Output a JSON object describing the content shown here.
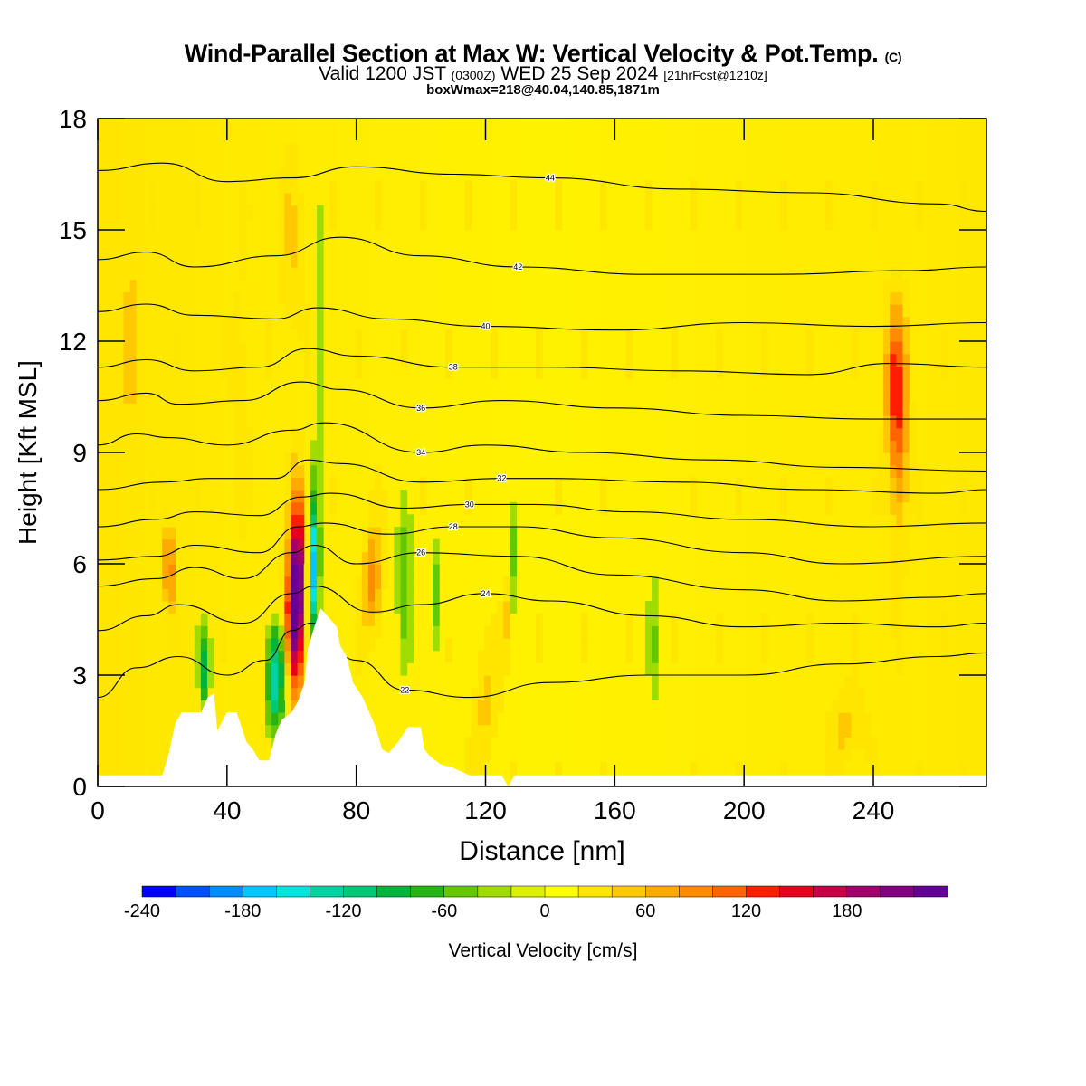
{
  "title": {
    "main": "Wind-Parallel Section at Max W: Vertical Velocity & Pot.Temp.",
    "copyright": "(C)",
    "valid_prefix": "Valid 1200 JST",
    "utc": "(0300Z)",
    "date": "WED 25 Sep 2024",
    "forecast": "[21hrFcst@1210z]",
    "box": "boxWmax=218@40.04,140.85,1871m"
  },
  "chart_data": {
    "type": "heatmap",
    "xlabel": "Distance [nm]",
    "ylabel": "Height [Kft MSL]",
    "xlim": [
      0,
      275
    ],
    "ylim": [
      0,
      18
    ],
    "x_ticks": [
      0,
      40,
      80,
      120,
      160,
      200,
      240
    ],
    "y_ticks": [
      0,
      3,
      6,
      9,
      12,
      15,
      18
    ],
    "colorbar": {
      "label": "Vertical Velocity [cm/s]",
      "ticks": [
        -240,
        -180,
        -120,
        -60,
        0,
        60,
        120,
        180
      ],
      "levels": [
        -240,
        -220,
        -200,
        -180,
        -160,
        -140,
        -120,
        -100,
        -80,
        -60,
        -40,
        -20,
        0,
        20,
        40,
        60,
        80,
        100,
        120,
        140,
        160,
        180,
        200,
        220,
        240
      ],
      "colors": [
        "#0000ff",
        "#0050ff",
        "#008cff",
        "#00c8ff",
        "#00e6dc",
        "#00d2a0",
        "#00c878",
        "#00b43c",
        "#28b414",
        "#64c800",
        "#a0dc00",
        "#dcf000",
        "#ffff00",
        "#ffe600",
        "#ffc800",
        "#ffaa00",
        "#ff8c00",
        "#ff6400",
        "#ff1e00",
        "#e6001e",
        "#c80046",
        "#a0006e",
        "#820082",
        "#640096"
      ]
    },
    "terrain_profile_kft": [
      [
        0,
        0.3
      ],
      [
        20,
        0.3
      ],
      [
        22,
        0.9
      ],
      [
        24,
        1.7
      ],
      [
        26,
        2.0
      ],
      [
        32,
        2.0
      ],
      [
        34,
        2.4
      ],
      [
        36,
        2.5
      ],
      [
        37,
        1.5
      ],
      [
        40,
        2.0
      ],
      [
        43,
        2.0
      ],
      [
        46,
        1.2
      ],
      [
        48,
        1.0
      ],
      [
        50,
        0.7
      ],
      [
        53,
        0.7
      ],
      [
        55,
        1.4
      ],
      [
        57,
        1.8
      ],
      [
        60,
        2.0
      ],
      [
        62,
        2.3
      ],
      [
        64,
        2.8
      ],
      [
        65,
        3.7
      ],
      [
        66,
        4.0
      ],
      [
        67,
        4.3
      ],
      [
        69,
        4.8
      ],
      [
        71,
        4.6
      ],
      [
        74,
        4.3
      ],
      [
        75,
        3.8
      ],
      [
        77,
        3.5
      ],
      [
        79,
        2.8
      ],
      [
        82,
        2.4
      ],
      [
        84,
        2.0
      ],
      [
        86,
        1.6
      ],
      [
        88,
        1.0
      ],
      [
        90,
        0.9
      ],
      [
        93,
        1.2
      ],
      [
        96,
        1.6
      ],
      [
        98,
        1.6
      ],
      [
        100,
        1.6
      ],
      [
        101,
        1.0
      ],
      [
        103,
        0.8
      ],
      [
        106,
        0.6
      ],
      [
        110,
        0.5
      ],
      [
        115,
        0.3
      ],
      [
        125,
        0.3
      ],
      [
        127,
        0.0
      ],
      [
        129,
        0.3
      ],
      [
        275,
        0.3
      ]
    ],
    "theta_contours": [
      {
        "label": "22",
        "points": [
          [
            0,
            2.4
          ],
          [
            12,
            3.2
          ],
          [
            25,
            3.5
          ],
          [
            40,
            3.0
          ],
          [
            52,
            3.4
          ],
          [
            60,
            4.2
          ],
          [
            66,
            4.4
          ],
          [
            80,
            3.4
          ],
          [
            95,
            2.6
          ],
          [
            115,
            2.4
          ],
          [
            140,
            2.8
          ],
          [
            170,
            3.0
          ],
          [
            200,
            3.0
          ],
          [
            230,
            3.3
          ],
          [
            260,
            3.5
          ],
          [
            275,
            3.6
          ]
        ]
      },
      {
        "label": "24",
        "points": [
          [
            0,
            4.2
          ],
          [
            15,
            4.6
          ],
          [
            25,
            4.9
          ],
          [
            45,
            4.4
          ],
          [
            60,
            5.2
          ],
          [
            67,
            5.4
          ],
          [
            85,
            4.7
          ],
          [
            100,
            4.9
          ],
          [
            120,
            5.2
          ],
          [
            140,
            5.0
          ],
          [
            170,
            4.6
          ],
          [
            200,
            4.3
          ],
          [
            230,
            4.4
          ],
          [
            260,
            4.3
          ],
          [
            275,
            4.4
          ]
        ]
      },
      {
        "label": "26",
        "points": [
          [
            0,
            5.4
          ],
          [
            18,
            5.6
          ],
          [
            30,
            5.9
          ],
          [
            45,
            5.6
          ],
          [
            60,
            6.3
          ],
          [
            67,
            6.5
          ],
          [
            80,
            6.0
          ],
          [
            100,
            6.3
          ],
          [
            130,
            6.2
          ],
          [
            160,
            5.7
          ],
          [
            200,
            5.3
          ],
          [
            230,
            5.0
          ],
          [
            260,
            5.1
          ],
          [
            275,
            5.2
          ]
        ]
      },
      {
        "label": "28",
        "points": [
          [
            0,
            6.1
          ],
          [
            18,
            6.2
          ],
          [
            30,
            6.5
          ],
          [
            50,
            6.3
          ],
          [
            62,
            7.0
          ],
          [
            70,
            7.1
          ],
          [
            90,
            6.8
          ],
          [
            110,
            7.0
          ],
          [
            130,
            7.0
          ],
          [
            160,
            6.7
          ],
          [
            200,
            6.3
          ],
          [
            230,
            6.0
          ],
          [
            275,
            6.2
          ]
        ]
      },
      {
        "label": "30",
        "points": [
          [
            0,
            7.0
          ],
          [
            18,
            7.2
          ],
          [
            30,
            7.4
          ],
          [
            50,
            7.3
          ],
          [
            63,
            7.8
          ],
          [
            72,
            7.9
          ],
          [
            95,
            7.5
          ],
          [
            115,
            7.6
          ],
          [
            135,
            7.6
          ],
          [
            165,
            7.4
          ],
          [
            200,
            7.2
          ],
          [
            240,
            7.0
          ],
          [
            275,
            7.1
          ]
        ]
      },
      {
        "label": "32",
        "points": [
          [
            0,
            8.0
          ],
          [
            20,
            8.2
          ],
          [
            35,
            8.3
          ],
          [
            55,
            8.3
          ],
          [
            65,
            8.8
          ],
          [
            75,
            8.7
          ],
          [
            100,
            8.2
          ],
          [
            125,
            8.3
          ],
          [
            140,
            8.3
          ],
          [
            180,
            8.2
          ],
          [
            220,
            8.0
          ],
          [
            260,
            7.9
          ],
          [
            275,
            8.0
          ]
        ]
      },
      {
        "label": "34",
        "points": [
          [
            0,
            9.2
          ],
          [
            12,
            9.5
          ],
          [
            22,
            9.4
          ],
          [
            40,
            9.2
          ],
          [
            60,
            9.6
          ],
          [
            70,
            9.8
          ],
          [
            100,
            9.0
          ],
          [
            120,
            9.2
          ],
          [
            150,
            9.0
          ],
          [
            190,
            8.8
          ],
          [
            230,
            8.6
          ],
          [
            275,
            8.5
          ]
        ]
      },
      {
        "label": "36",
        "points": [
          [
            0,
            10.4
          ],
          [
            15,
            10.6
          ],
          [
            25,
            10.3
          ],
          [
            45,
            10.4
          ],
          [
            63,
            10.9
          ],
          [
            75,
            10.7
          ],
          [
            100,
            10.2
          ],
          [
            125,
            10.4
          ],
          [
            160,
            10.2
          ],
          [
            200,
            10.0
          ],
          [
            240,
            9.9
          ],
          [
            275,
            9.9
          ]
        ]
      },
      {
        "label": "38",
        "points": [
          [
            0,
            11.3
          ],
          [
            15,
            11.5
          ],
          [
            30,
            11.2
          ],
          [
            50,
            11.3
          ],
          [
            65,
            11.8
          ],
          [
            80,
            11.6
          ],
          [
            110,
            11.3
          ],
          [
            140,
            11.3
          ],
          [
            180,
            11.2
          ],
          [
            220,
            11.1
          ],
          [
            245,
            11.4
          ],
          [
            275,
            11.3
          ]
        ]
      },
      {
        "label": "40",
        "points": [
          [
            0,
            12.8
          ],
          [
            15,
            13.0
          ],
          [
            30,
            12.7
          ],
          [
            55,
            12.6
          ],
          [
            68,
            12.9
          ],
          [
            90,
            12.6
          ],
          [
            120,
            12.4
          ],
          [
            160,
            12.3
          ],
          [
            200,
            12.5
          ],
          [
            240,
            12.4
          ],
          [
            275,
            12.5
          ]
        ]
      },
      {
        "label": "42",
        "points": [
          [
            0,
            14.2
          ],
          [
            15,
            14.4
          ],
          [
            30,
            14.0
          ],
          [
            55,
            14.3
          ],
          [
            75,
            14.8
          ],
          [
            100,
            14.3
          ],
          [
            130,
            14.0
          ],
          [
            170,
            13.8
          ],
          [
            210,
            13.8
          ],
          [
            250,
            13.9
          ],
          [
            275,
            14.0
          ]
        ]
      },
      {
        "label": "44",
        "points": [
          [
            0,
            16.6
          ],
          [
            20,
            16.8
          ],
          [
            40,
            16.3
          ],
          [
            60,
            16.4
          ],
          [
            80,
            16.7
          ],
          [
            110,
            16.5
          ],
          [
            140,
            16.4
          ],
          [
            180,
            16.1
          ],
          [
            220,
            16.0
          ],
          [
            260,
            15.7
          ],
          [
            275,
            15.5
          ]
        ]
      }
    ],
    "wmax_location": "40.04,140.85,1871m",
    "wmax_value_cm_s": 218
  }
}
